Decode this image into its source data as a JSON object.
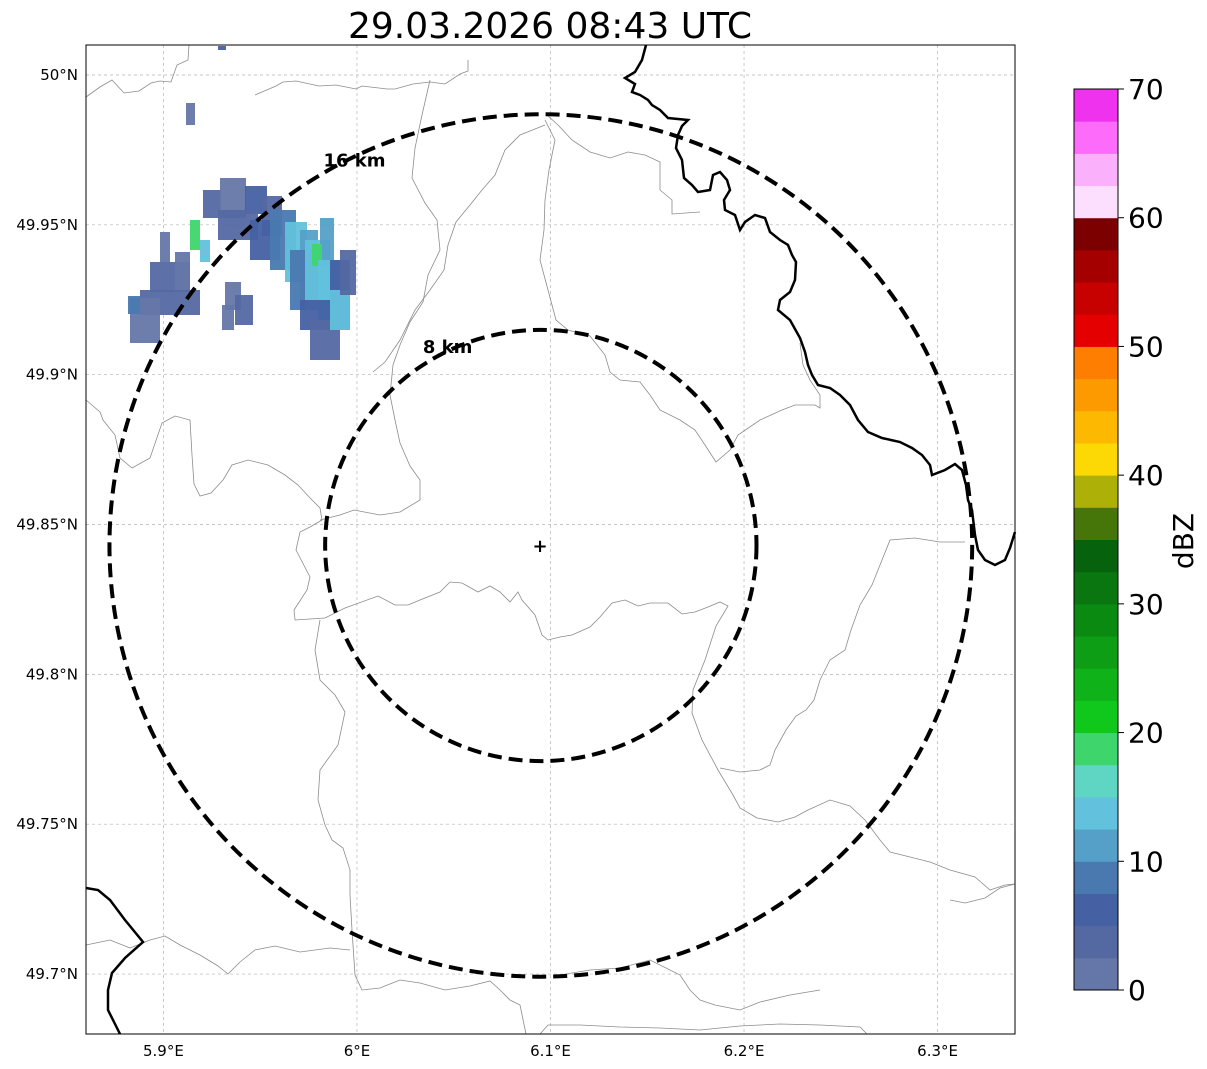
{
  "title": "29.03.2026 08:43 UTC",
  "map": {
    "lon_range": [
      5.86,
      6.34
    ],
    "lat_range": [
      49.68,
      50.01
    ],
    "lon_ticks": [
      5.9,
      6.0,
      6.1,
      6.2,
      6.3
    ],
    "lon_tick_labels": [
      "5.9°E",
      "6°E",
      "6.1°E",
      "6.2°E",
      "6.3°E"
    ],
    "lat_ticks": [
      49.7,
      49.75,
      49.8,
      49.85,
      49.9,
      49.95,
      50.0
    ],
    "lat_tick_labels": [
      "49.7°N",
      "49.75°N",
      "49.8°N",
      "49.85°N",
      "49.9°N",
      "49.95°N",
      "50°N"
    ],
    "grid": true,
    "radar_site": {
      "lon": 6.095,
      "lat": 49.843
    },
    "range_rings": [
      {
        "label": "8 km",
        "radius_km": 8
      },
      {
        "label": "16 km",
        "radius_km": 16
      }
    ]
  },
  "colorbar": {
    "label": "dBZ",
    "min": 0,
    "max": 70,
    "tick_values": [
      0,
      10,
      20,
      30,
      40,
      50,
      60,
      70
    ],
    "tick_labels": [
      "0",
      "10",
      "20",
      "30",
      "40",
      "50",
      "60",
      "70"
    ],
    "colors": [
      "#6577a8",
      "#5468a2",
      "#4560a3",
      "#4a79b0",
      "#55a0c8",
      "#62c1dc",
      "#5fd6c4",
      "#3ed66c",
      "#10c81c",
      "#0fb319",
      "#0e9e15",
      "#0b8a12",
      "#0a7610",
      "#06620d",
      "#467509",
      "#adb006",
      "#fcd905",
      "#fdb801",
      "#fd9a00",
      "#fd7e00",
      "#e50000",
      "#c70000",
      "#a40000",
      "#7c0000",
      "#fcdfff",
      "#fbb0fc",
      "#fc6bfa",
      "#ee32ee"
    ]
  },
  "colors": {
    "border_country": "#000000",
    "border_admin": "#8c8c8c",
    "grid": "#b4b4b4",
    "rings": "#000000"
  }
}
